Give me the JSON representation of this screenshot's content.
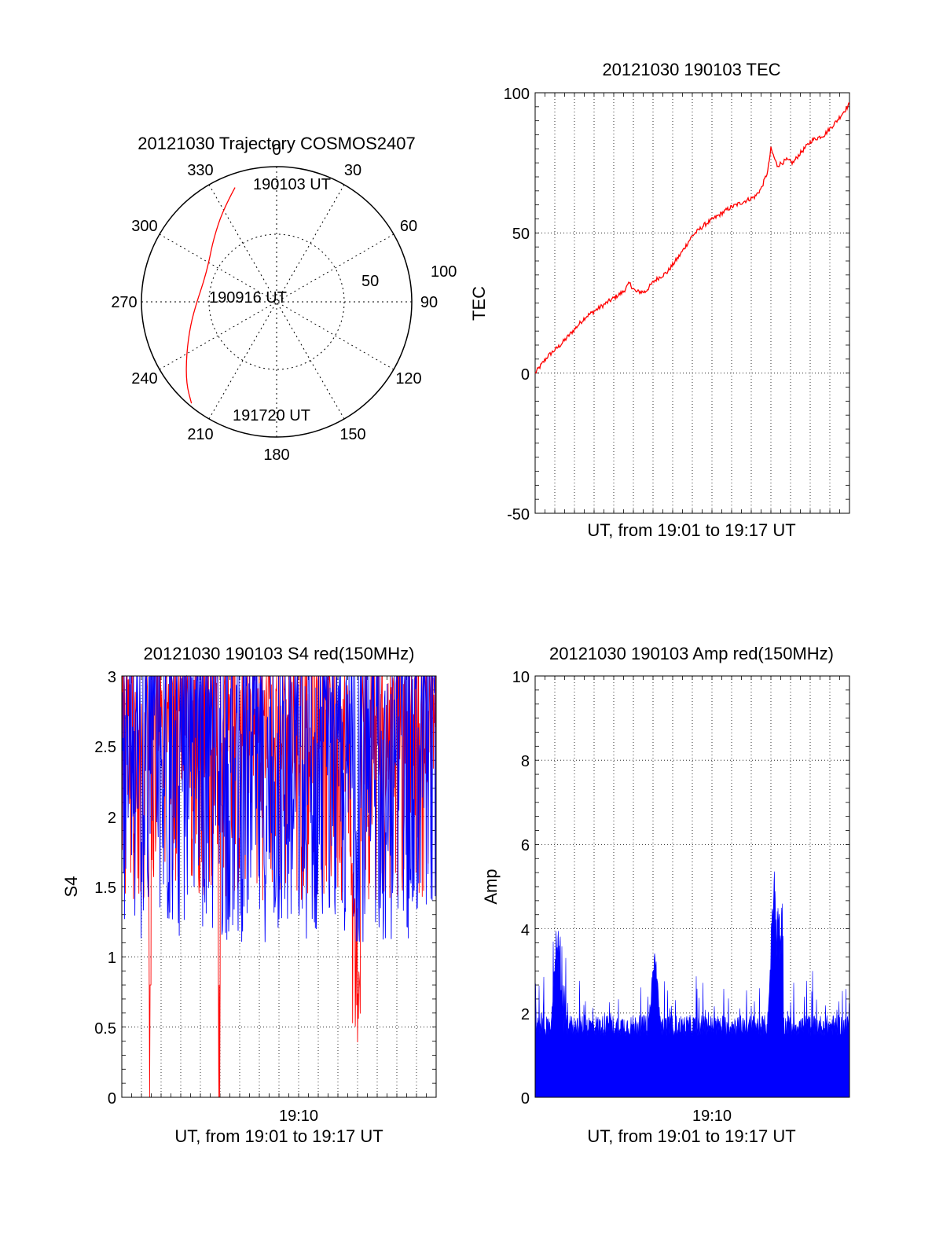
{
  "chart_data": [
    {
      "id": "trajectory",
      "type": "polar",
      "title": "20121030 Trajectory COSMOS2407",
      "azimuth_labels": [
        "0",
        "30",
        "60",
        "90",
        "120",
        "150",
        "180",
        "210",
        "240",
        "270",
        "300",
        "330"
      ],
      "radial_labels": [
        "50",
        "100"
      ],
      "rlim": [
        0,
        100
      ],
      "grid": true,
      "series_color": "#ff0000",
      "track": [
        {
          "az": 340,
          "r": 90
        },
        {
          "az": 330,
          "r": 79
        },
        {
          "az": 315,
          "r": 66
        },
        {
          "az": 300,
          "r": 58
        },
        {
          "az": 285,
          "r": 56
        },
        {
          "az": 270,
          "r": 59
        },
        {
          "az": 255,
          "r": 66
        },
        {
          "az": 240,
          "r": 77
        },
        {
          "az": 228,
          "r": 90
        },
        {
          "az": 220,
          "r": 98
        }
      ],
      "annotations": [
        "190103 UT",
        "190916 UT",
        "191720 UT"
      ]
    },
    {
      "id": "tec",
      "type": "line",
      "title": "20121030 190103 TEC",
      "xlabel": "UT, from 19:01 to 19:17 UT",
      "ylabel": "TEC",
      "ylim": [
        -50,
        100
      ],
      "yticks": [
        "100",
        "50",
        "0",
        "-50"
      ],
      "grid": true,
      "series_color": "#ff0000",
      "x": [
        0,
        0.04,
        0.08,
        0.12,
        0.16,
        0.2,
        0.24,
        0.28,
        0.3,
        0.32,
        0.35,
        0.38,
        0.42,
        0.46,
        0.5,
        0.54,
        0.58,
        0.62,
        0.66,
        0.7,
        0.72,
        0.74,
        0.75,
        0.77,
        0.8,
        0.82,
        0.84,
        0.88,
        0.92,
        0.96,
        1.0
      ],
      "y": [
        0,
        6,
        10,
        15,
        20,
        23,
        26,
        29,
        32,
        29,
        29,
        33,
        36,
        42,
        49,
        53,
        56,
        59,
        61,
        63,
        66,
        72,
        80,
        74,
        76,
        75,
        78,
        83,
        85,
        90,
        96
      ]
    },
    {
      "id": "s4",
      "type": "line",
      "title": "20121030 190103 S4 red(150MHz)",
      "xlabel": "UT, from 19:01 to 19:17 UT",
      "ylabel": "S4",
      "xtick_label": "19:10",
      "ylim": [
        0,
        3
      ],
      "yticks": [
        "3",
        "2.5",
        "2",
        "1.5",
        "1",
        "0.5",
        "0"
      ],
      "grid": true,
      "series": [
        {
          "color": "#ff0000",
          "style": "dense noise between ~1.2 and 3, dropouts to 0 near 19:02 and 19:06, dip to 0.35 near 19:14"
        },
        {
          "color": "#0000ff",
          "style": "dense noise between ~1.0 and 3"
        }
      ]
    },
    {
      "id": "amp",
      "type": "area",
      "title": "20121030 190103 Amp red(150MHz)",
      "xlabel": "UT, from 19:01 to 19:17 UT",
      "ylabel": "Amp",
      "xtick_label": "19:10",
      "ylim": [
        0,
        10
      ],
      "yticks": [
        "10",
        "8",
        "6",
        "4",
        "2",
        "0"
      ],
      "grid": true,
      "series_color": "#0000ff",
      "peaks": [
        {
          "x": 0.07,
          "y": 4.5
        },
        {
          "x": 0.38,
          "y": 3.8
        },
        {
          "x": 0.76,
          "y": 5.7
        }
      ],
      "baseline": 1.7
    }
  ]
}
